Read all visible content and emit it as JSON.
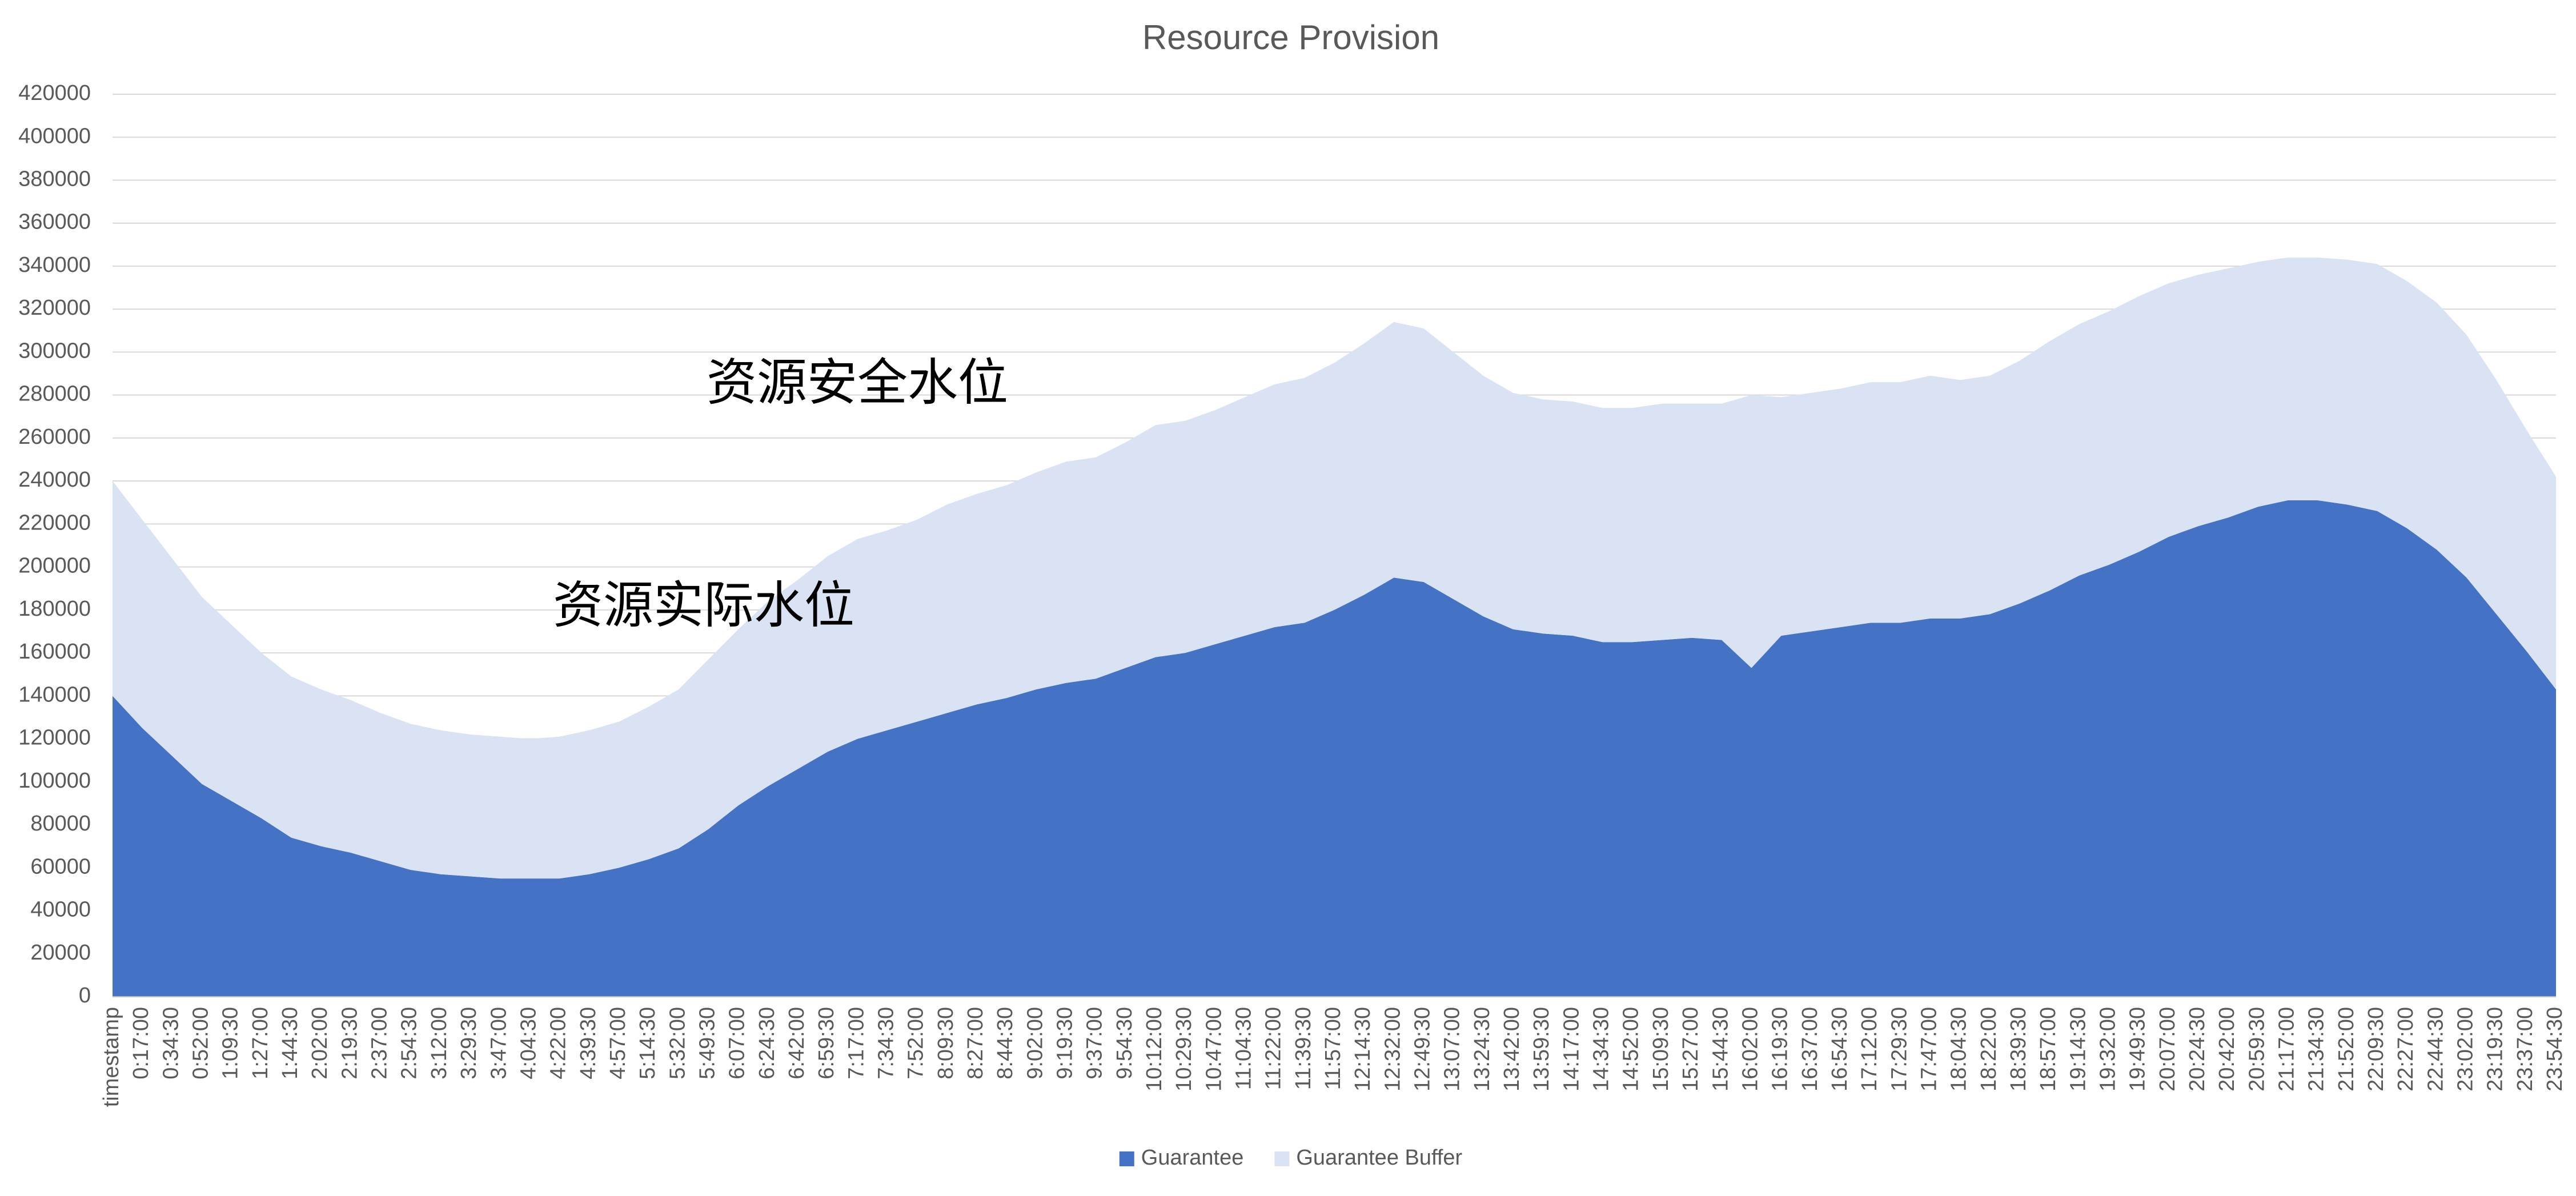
{
  "chart_data": {
    "type": "area",
    "stacked": true,
    "title": "Resource Provision",
    "categories": [
      "timestamp",
      "0:17:00",
      "0:34:30",
      "0:52:00",
      "1:09:30",
      "1:27:00",
      "1:44:30",
      "2:02:00",
      "2:19:30",
      "2:37:00",
      "2:54:30",
      "3:12:00",
      "3:29:30",
      "3:47:00",
      "4:04:30",
      "4:22:00",
      "4:39:30",
      "4:57:00",
      "5:14:30",
      "5:32:00",
      "5:49:30",
      "6:07:00",
      "6:24:30",
      "6:42:00",
      "6:59:30",
      "7:17:00",
      "7:34:30",
      "7:52:00",
      "8:09:30",
      "8:27:00",
      "8:44:30",
      "9:02:00",
      "9:19:30",
      "9:37:00",
      "9:54:30",
      "10:12:00",
      "10:29:30",
      "10:47:00",
      "11:04:30",
      "11:22:00",
      "11:39:30",
      "11:57:00",
      "12:14:30",
      "12:32:00",
      "12:49:30",
      "13:07:00",
      "13:24:30",
      "13:42:00",
      "13:59:30",
      "14:17:00",
      "14:34:30",
      "14:52:00",
      "15:09:30",
      "15:27:00",
      "15:44:30",
      "16:02:00",
      "16:19:30",
      "16:37:00",
      "16:54:30",
      "17:12:00",
      "17:29:30",
      "17:47:00",
      "18:04:30",
      "18:22:00",
      "18:39:30",
      "18:57:00",
      "19:14:30",
      "19:32:00",
      "19:49:30",
      "20:07:00",
      "20:24:30",
      "20:42:00",
      "20:59:30",
      "21:17:00",
      "21:34:30",
      "21:52:00",
      "22:09:30",
      "22:27:00",
      "22:44:30",
      "23:02:00",
      "23:19:30",
      "23:37:00",
      "23:54:30"
    ],
    "series": [
      {
        "name": "Guarantee",
        "color": "#4472c4",
        "values": [
          140000,
          125000,
          112000,
          99000,
          91000,
          83000,
          74000,
          70000,
          67000,
          63000,
          59000,
          57000,
          56000,
          55000,
          55000,
          55000,
          57000,
          60000,
          64000,
          69000,
          78000,
          89000,
          98000,
          106000,
          114000,
          120000,
          124000,
          128000,
          132000,
          136000,
          139000,
          143000,
          146000,
          148000,
          153000,
          158000,
          160000,
          164000,
          168000,
          172000,
          174000,
          180000,
          187000,
          195000,
          193000,
          185000,
          177000,
          171000,
          169000,
          168000,
          165000,
          165000,
          166000,
          167000,
          166000,
          153000,
          168000,
          170000,
          172000,
          174000,
          174000,
          176000,
          176000,
          178000,
          183000,
          189000,
          196000,
          201000,
          207000,
          214000,
          219000,
          223000,
          228000,
          231000,
          231000,
          229000,
          226000,
          218000,
          208000,
          195000,
          178000,
          161000,
          143000
        ]
      },
      {
        "name": "Guarantee Buffer",
        "color": "#dae3f3",
        "values": [
          100000,
          97000,
          92000,
          87000,
          82000,
          77000,
          75000,
          73000,
          71000,
          69000,
          68000,
          67000,
          66000,
          66000,
          65000,
          66000,
          67000,
          68000,
          71000,
          74000,
          79000,
          82000,
          86000,
          88000,
          91000,
          93000,
          93000,
          94000,
          97000,
          98000,
          99000,
          101000,
          103000,
          103000,
          105000,
          108000,
          108000,
          109000,
          111000,
          113000,
          114000,
          115000,
          117000,
          119000,
          118000,
          115000,
          112000,
          110000,
          109000,
          109000,
          109000,
          109000,
          110000,
          109000,
          110000,
          127000,
          111000,
          111000,
          111000,
          112000,
          112000,
          113000,
          111000,
          111000,
          113000,
          116000,
          117000,
          118000,
          119000,
          118000,
          117000,
          116000,
          114000,
          113000,
          113000,
          114000,
          115000,
          115000,
          115000,
          113000,
          109000,
          103000,
          99000
        ]
      }
    ],
    "ylim": [
      0,
      420000
    ],
    "yticks": [
      0,
      20000,
      40000,
      60000,
      80000,
      100000,
      120000,
      140000,
      160000,
      180000,
      200000,
      220000,
      240000,
      260000,
      280000,
      300000,
      320000,
      340000,
      360000,
      380000,
      400000,
      420000
    ],
    "grid": true,
    "legend": "bottom",
    "annotations": [
      "资源安全水位",
      "资源实际水位"
    ]
  }
}
